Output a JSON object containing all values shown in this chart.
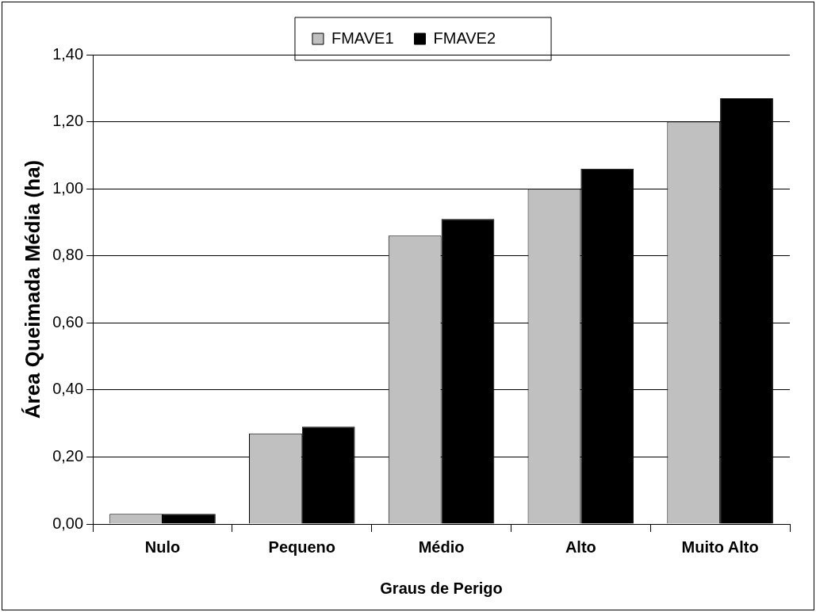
{
  "chart_data": {
    "type": "bar",
    "xlabel": "Graus de Perigo",
    "ylabel": "Área Queimada Média (ha)",
    "categories": [
      "Nulo",
      "Pequeno",
      "Médio",
      "Alto",
      "Muito Alto"
    ],
    "series": [
      {
        "name": "FMAVE1",
        "color": "#c0c0c0",
        "values": [
          0.03,
          0.27,
          0.86,
          1.0,
          1.2
        ]
      },
      {
        "name": "FMAVE2",
        "color": "#000000",
        "values": [
          0.03,
          0.29,
          0.91,
          1.06,
          1.27
        ]
      }
    ],
    "ylim": [
      0,
      1.4
    ],
    "yticks": [
      {
        "value": 0,
        "label": "0,00"
      },
      {
        "value": 0.2,
        "label": "0,20"
      },
      {
        "value": 0.4,
        "label": "0,40"
      },
      {
        "value": 0.6,
        "label": "0,60"
      },
      {
        "value": 0.8,
        "label": "0,80"
      },
      {
        "value": 1.0,
        "label": "1,00"
      },
      {
        "value": 1.2,
        "label": "1,20"
      },
      {
        "value": 1.4,
        "label": "1,40"
      }
    ],
    "grid": "y",
    "legend": "top"
  }
}
